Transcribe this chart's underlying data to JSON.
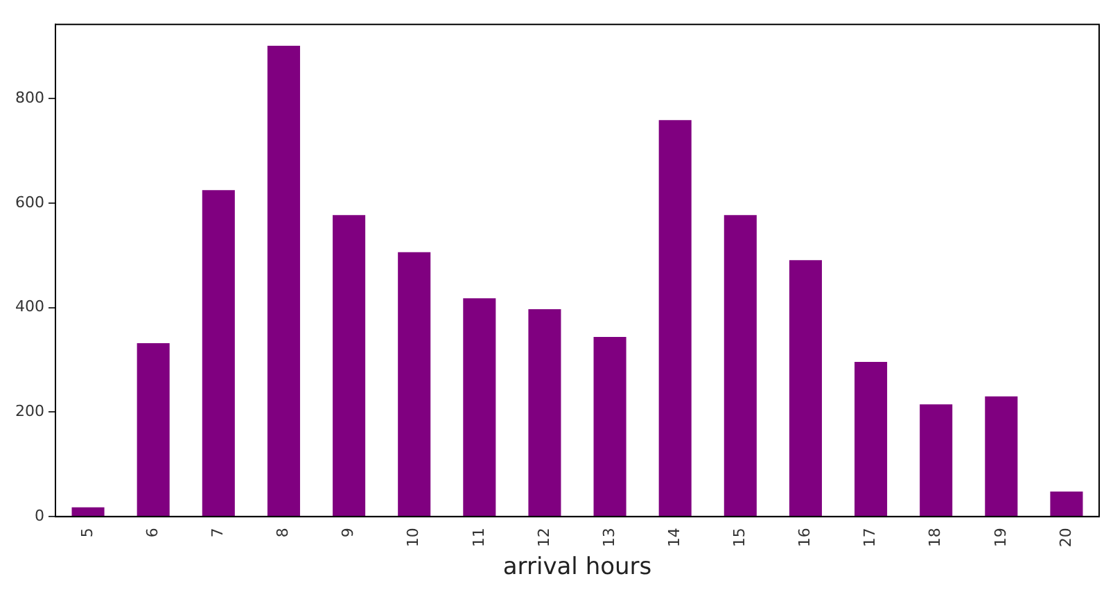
{
  "chart_data": {
    "type": "bar",
    "xlabel": "arrival hours",
    "categories": [
      "5",
      "6",
      "7",
      "8",
      "9",
      "10",
      "11",
      "12",
      "13",
      "14",
      "15",
      "16",
      "17",
      "18",
      "19",
      "20"
    ],
    "series": [
      {
        "color": "#800080",
        "values": [
          18,
          332,
          625,
          901,
          577,
          506,
          418,
          397,
          344,
          759,
          577,
          491,
          296,
          215,
          230,
          48
        ]
      }
    ],
    "ylim": [
      0,
      942
    ],
    "yticks": [
      0,
      200,
      400,
      600,
      800
    ],
    "grid": false,
    "legend": false
  }
}
